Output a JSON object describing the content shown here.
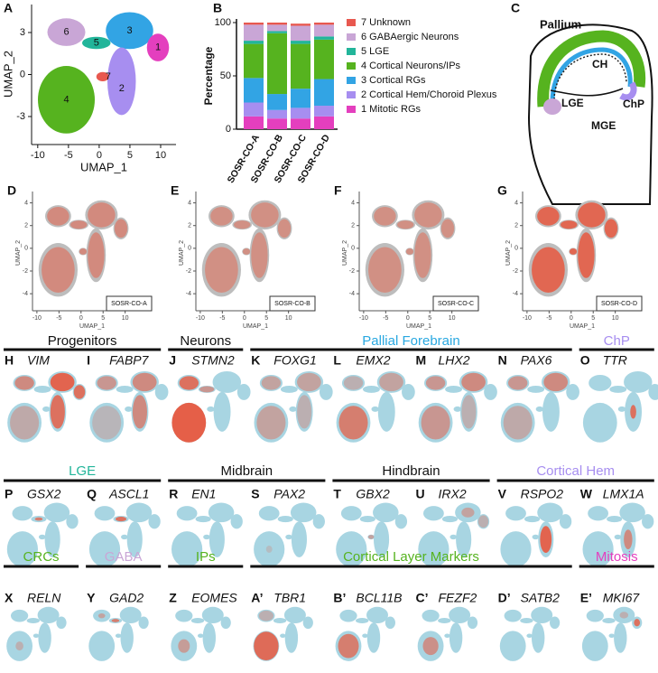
{
  "chart_data": {
    "type": "bar",
    "stacked": true,
    "letter": "B",
    "y_label": "Percentage",
    "categories": [
      "SOSR-CO-A",
      "SOSR-CO-B",
      "SOSR-CO-C",
      "SOSR-CO-D"
    ],
    "series": [
      {
        "name": "1 Mitotic RGs",
        "color": "#e43fbe",
        "values": [
          12,
          10,
          10,
          12
        ]
      },
      {
        "name": "2 Cortical Hem/Choroid Plexus",
        "color": "#a78ef0",
        "values": [
          13,
          8,
          10,
          10
        ]
      },
      {
        "name": "3 Cortical RGs",
        "color": "#32a4e4",
        "values": [
          23,
          15,
          18,
          25
        ]
      },
      {
        "name": "4 Cortical Neurons/IPs",
        "color": "#56b31f",
        "values": [
          32,
          57,
          42,
          37
        ]
      },
      {
        "name": "5 LGE",
        "color": "#22b59a",
        "values": [
          3,
          2,
          3,
          3
        ]
      },
      {
        "name": "6 GABAergic Neurons",
        "color": "#c9a6d6",
        "values": [
          15,
          6,
          14,
          11
        ]
      },
      {
        "name": "7 Unknown",
        "color": "#e8584f",
        "values": [
          2,
          2,
          2,
          2
        ]
      }
    ],
    "ylim": [
      0,
      100
    ],
    "yticks": [
      0,
      50,
      100
    ]
  },
  "umap_a": {
    "letter": "A",
    "x_label": "UMAP_1",
    "y_label": "UMAP_2",
    "xlim": [
      -11,
      12.5
    ],
    "ylim": [
      -5,
      5
    ],
    "xticks": [
      -10,
      -5,
      0,
      5,
      10
    ],
    "yticks": [
      -3,
      0,
      3
    ],
    "cluster_labels": [
      "1",
      "2",
      "3",
      "4",
      "5",
      "6",
      "7"
    ]
  },
  "diagram_c": {
    "letter": "C",
    "labels": [
      "Pallium",
      "CH",
      "ChP",
      "LGE",
      "MGE"
    ]
  },
  "sample_umaps": {
    "x_label": "UMAP_1",
    "y_label": "UMAP_2",
    "xlim": [
      -11,
      16
    ],
    "ylim": [
      -5.5,
      5
    ],
    "xticks": [
      -10,
      -5,
      0,
      5,
      10
    ],
    "yticks": [
      -4,
      -2,
      0,
      2,
      4
    ],
    "panels": [
      {
        "letter": "D",
        "sample": "SOSR-CO-A"
      },
      {
        "letter": "E",
        "sample": "SOSR-CO-B"
      },
      {
        "letter": "F",
        "sample": "SOSR-CO-C"
      },
      {
        "letter": "G",
        "sample": "SOSR-CO-D"
      }
    ]
  },
  "gene_rows": [
    {
      "headers": [
        {
          "text": "Progenitors",
          "color": "#111111"
        },
        {
          "text": "Neurons",
          "color": "#111111"
        },
        {
          "text": "Pallial Forebrain",
          "color": "#29a8e0"
        },
        {
          "text": "ChP",
          "color": "#a78ef0"
        }
      ],
      "panels": [
        {
          "letter": "H",
          "gene": "VIM"
        },
        {
          "letter": "I",
          "gene": "FABP7"
        },
        {
          "letter": "J",
          "gene": "STMN2"
        },
        {
          "letter": "K",
          "gene": "FOXG1"
        },
        {
          "letter": "L",
          "gene": "EMX2"
        },
        {
          "letter": "M",
          "gene": "LHX2"
        },
        {
          "letter": "N",
          "gene": "PAX6"
        },
        {
          "letter": "O",
          "gene": "TTR"
        }
      ]
    },
    {
      "headers": [
        {
          "text": "LGE",
          "color": "#22b59a"
        },
        {
          "text": "Midbrain",
          "color": "#111111"
        },
        {
          "text": "Hindbrain",
          "color": "#111111"
        },
        {
          "text": "Cortical Hem",
          "color": "#a78ef0"
        }
      ],
      "panels": [
        {
          "letter": "P",
          "gene": "GSX2"
        },
        {
          "letter": "Q",
          "gene": "ASCL1"
        },
        {
          "letter": "R",
          "gene": "EN1"
        },
        {
          "letter": "S",
          "gene": "PAX2"
        },
        {
          "letter": "T",
          "gene": "GBX2"
        },
        {
          "letter": "U",
          "gene": "IRX2"
        },
        {
          "letter": "V",
          "gene": "RSPO2"
        },
        {
          "letter": "W",
          "gene": "LMX1A"
        }
      ]
    },
    {
      "headers": [
        {
          "text": "CRCs",
          "color": "#56b31f"
        },
        {
          "text": "GABA",
          "color": "#c9a6d6"
        },
        {
          "text": "IPs",
          "color": "#56b31f"
        },
        {
          "text": "Cortical Layer Markers",
          "color": "#56b31f"
        },
        {
          "text": "Mitosis",
          "color": "#e43fbe"
        }
      ],
      "panels": [
        {
          "letter": "X",
          "gene": "RELN"
        },
        {
          "letter": "Y",
          "gene": "GAD2"
        },
        {
          "letter": "Z",
          "gene": "EOMES"
        },
        {
          "letter": "A’",
          "gene": "TBR1"
        },
        {
          "letter": "B’",
          "gene": "BCL11B"
        },
        {
          "letter": "C’",
          "gene": "FEZF2"
        },
        {
          "letter": "D’",
          "gene": "SATB2"
        },
        {
          "letter": "E’",
          "gene": "MKI67"
        }
      ]
    }
  ]
}
